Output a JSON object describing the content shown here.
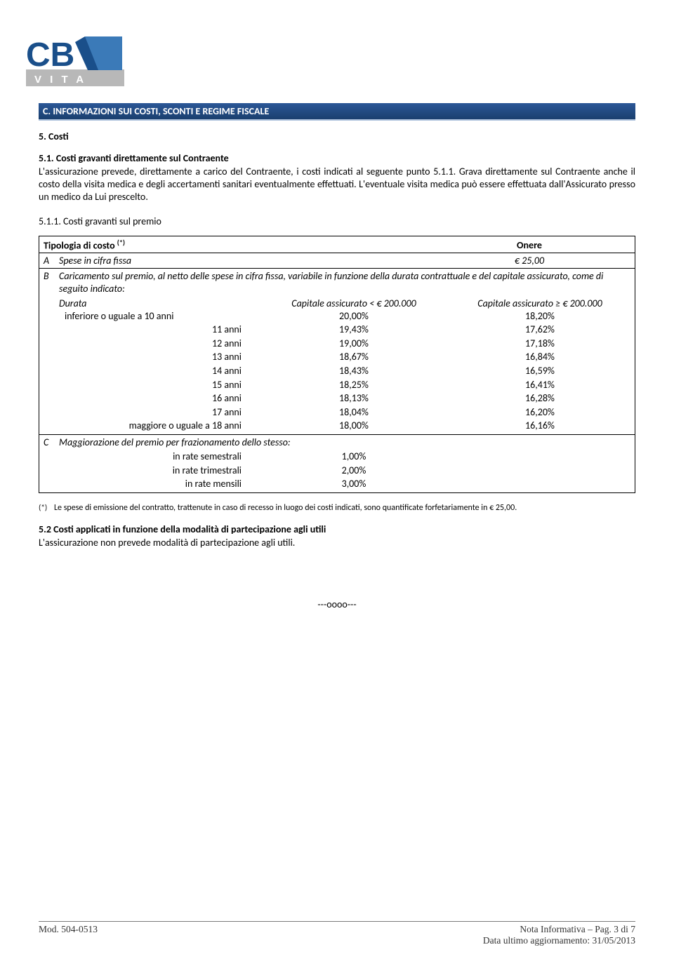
{
  "logo": {
    "text_cb": "CB",
    "text_vita": "V I T A",
    "blue_dark": "#1a4f8a",
    "blue_light": "#3b7ab8",
    "gray": "#b8b8b8"
  },
  "section_header": "C. INFORMAZIONI SUI COSTI, SCONTI E REGIME FISCALE",
  "s5_title": "5. Costi",
  "s51_title": "5.1. Costi gravanti direttamente sul Contraente",
  "s51_body": "L'assicurazione prevede, direttamente a carico del Contraente, i costi indicati al seguente punto 5.1.1. Grava direttamente sul Contraente anche il costo della visita medica e degli  accertamenti sanitari eventualmente effettuati. L'eventuale visita medica può essere effettuata dall'Assicurato presso un medico da Lui prescelto.",
  "s511_title": "5.1.1. Costi gravanti sul premio",
  "table": {
    "header_left": "Tipologia di costo ",
    "header_left_sup": "(*)",
    "header_right": "Onere",
    "rowA": {
      "letter": "A",
      "label": "Spese in cifra fissa",
      "value": "€ 25,00"
    },
    "rowB": {
      "letter": "B",
      "intro": "Caricamento sul premio, al netto delle spese in cifra fissa, variabile in funzione della durata contrattuale e del capitale assicurato, come di seguito indicato:",
      "col1": "Durata",
      "col2": "Capitale assicurato < € 200.000",
      "col3": "Capitale assicurato ≥ € 200.000",
      "rows": [
        {
          "d": "inferiore o uguale a 10 anni",
          "v1": "20,00%",
          "v2": "18,20%",
          "first": true
        },
        {
          "d": "11 anni",
          "v1": "19,43%",
          "v2": "17,62%"
        },
        {
          "d": "12 anni",
          "v1": "19,00%",
          "v2": "17,18%"
        },
        {
          "d": "13 anni",
          "v1": "18,67%",
          "v2": "16,84%"
        },
        {
          "d": "14 anni",
          "v1": "18,43%",
          "v2": "16,59%"
        },
        {
          "d": "15 anni",
          "v1": "18,25%",
          "v2": "16,41%"
        },
        {
          "d": "16 anni",
          "v1": "18,13%",
          "v2": "16,28%"
        },
        {
          "d": "17 anni",
          "v1": "18,04%",
          "v2": "16,20%"
        },
        {
          "d": "maggiore o uguale a 18 anni",
          "v1": "18,00%",
          "v2": "16,16%"
        }
      ]
    },
    "rowC": {
      "letter": "C",
      "intro": "Maggiorazione del premio per frazionamento dello stesso:",
      "rows": [
        {
          "d": "in rate semestrali",
          "v": "1,00%"
        },
        {
          "d": "in rate trimestrali",
          "v": "2,00%"
        },
        {
          "d": "in rate mensili",
          "v": "3,00%"
        }
      ]
    }
  },
  "footnote_marker": "(*)",
  "footnote_text": "Le spese di emissione del contratto, trattenute in caso di recesso in luogo dei costi indicati, sono quantificate forfetariamente in € 25,00.",
  "s52_title": "5.2 Costi applicati in funzione della modalità di partecipazione agli utili",
  "s52_body": "L'assicurazione non prevede modalità di partecipazione agli utili.",
  "sep": "---oooo---",
  "footer": {
    "left": "Mod. 504-0513",
    "right1": "Nota Informativa – Pag. 3 di 7",
    "right2": "Data ultimo aggiornamento: 31/05/2013"
  }
}
